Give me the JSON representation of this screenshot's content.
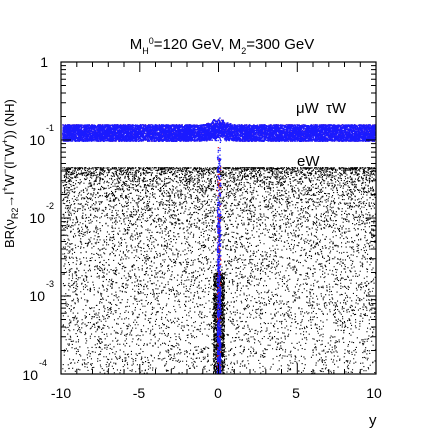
{
  "chart_data": {
    "type": "scatter",
    "title": "Mₕ⁰=120 GeV, M₂=300 GeV",
    "xlabel": "y",
    "ylabel": "BR(νᴿ₂→l⁺W⁻(l⁻W⁺)) (NH)",
    "xlim": [
      -10,
      10
    ],
    "ylim": [
      0.0001,
      1
    ],
    "yscale": "log",
    "x_ticks": [
      "-10",
      "-5",
      "0",
      "5",
      "10"
    ],
    "y_ticks": [
      {
        "base": "1",
        "exp": ""
      },
      {
        "base": "10",
        "exp": "-1"
      },
      {
        "base": "10",
        "exp": "-2"
      },
      {
        "base": "10",
        "exp": "-3"
      },
      {
        "base": "10",
        "exp": "-4"
      }
    ],
    "series": [
      {
        "name": "μW",
        "color": "#e8141c",
        "center": 0.125,
        "spread": [
          0.098,
          0.16
        ],
        "peak": 0.2
      },
      {
        "name": "τW",
        "color": "#1a1aff",
        "center": 0.125,
        "spread": [
          0.098,
          0.16
        ],
        "peak": 0.2
      },
      {
        "name": "eW",
        "color": "#000000",
        "upper": 0.045,
        "lower": 0.0001
      }
    ]
  }
}
